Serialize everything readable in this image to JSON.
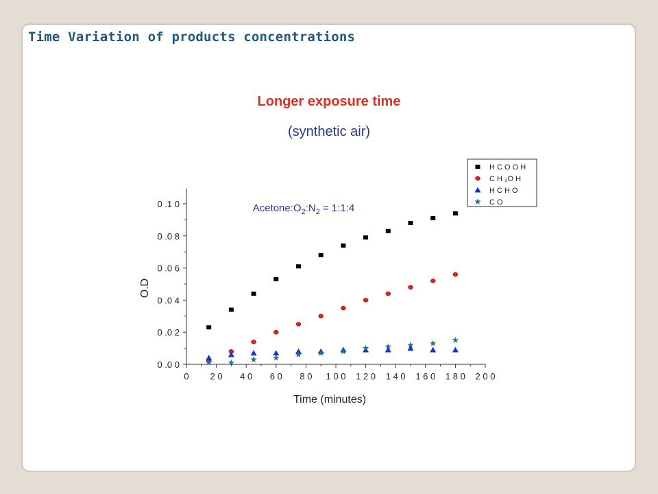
{
  "slide": {
    "title": "Time Variation of products concentrations"
  },
  "chart_data": {
    "type": "scatter",
    "title": "Longer exposure time",
    "subtitle": "(synthetic air)",
    "annotation": {
      "text": "Acetone:O",
      "sub1": "2",
      "mid": ":N",
      "sub2": "2",
      "tail": " = 1:1:4"
    },
    "xlabel": "Time (minutes)",
    "ylabel": "O.D",
    "xlim": [
      0,
      200
    ],
    "ylim": [
      0,
      0.11
    ],
    "xticks": [
      0,
      20,
      40,
      60,
      80,
      100,
      120,
      140,
      160,
      180,
      200
    ],
    "xtick_labels": [
      "0",
      "2 0",
      "4 0",
      "6 0",
      "8 0",
      "1 0 0",
      "1 2 0",
      "1 4 0",
      "1 6 0",
      "1 8 0",
      "2 0 0"
    ],
    "yticks": [
      0,
      0.02,
      0.04,
      0.06,
      0.08,
      0.1
    ],
    "ytick_labels": [
      "0 .0 0",
      "0 .0 2",
      "0 .0 4",
      "0 .0 6",
      "0 .0 8",
      "0 .1 0"
    ],
    "grid": false,
    "legend_position": "top-right",
    "series": [
      {
        "name": "H C O O H",
        "marker": "square",
        "color": "#000000",
        "x": [
          15,
          30,
          45,
          60,
          75,
          90,
          105,
          120,
          135,
          150,
          165,
          180
        ],
        "y": [
          0.023,
          0.034,
          0.044,
          0.053,
          0.061,
          0.068,
          0.074,
          0.079,
          0.083,
          0.088,
          0.091,
          0.094
        ]
      },
      {
        "name": "C H ₃O H",
        "marker": "circle",
        "color": "#e02020",
        "x": [
          15,
          30,
          45,
          60,
          75,
          90,
          105,
          120,
          135,
          150,
          165,
          180
        ],
        "y": [
          0.002,
          0.008,
          0.014,
          0.02,
          0.025,
          0.03,
          0.035,
          0.04,
          0.044,
          0.048,
          0.052,
          0.056
        ]
      },
      {
        "name": "H C H O",
        "marker": "triangle",
        "color": "#1a2fd0",
        "x": [
          15,
          30,
          45,
          60,
          75,
          90,
          105,
          120,
          135,
          150,
          165,
          180
        ],
        "y": [
          0.004,
          0.006,
          0.007,
          0.007,
          0.008,
          0.008,
          0.009,
          0.009,
          0.009,
          0.01,
          0.009,
          0.009
        ]
      },
      {
        "name": "C O",
        "marker": "star",
        "color": "#1a7a7a",
        "x": [
          15,
          30,
          45,
          60,
          75,
          90,
          105,
          120,
          135,
          150,
          165,
          180
        ],
        "y": [
          0.001,
          0.001,
          0.003,
          0.004,
          0.006,
          0.007,
          0.008,
          0.01,
          0.011,
          0.012,
          0.013,
          0.015
        ]
      }
    ]
  }
}
